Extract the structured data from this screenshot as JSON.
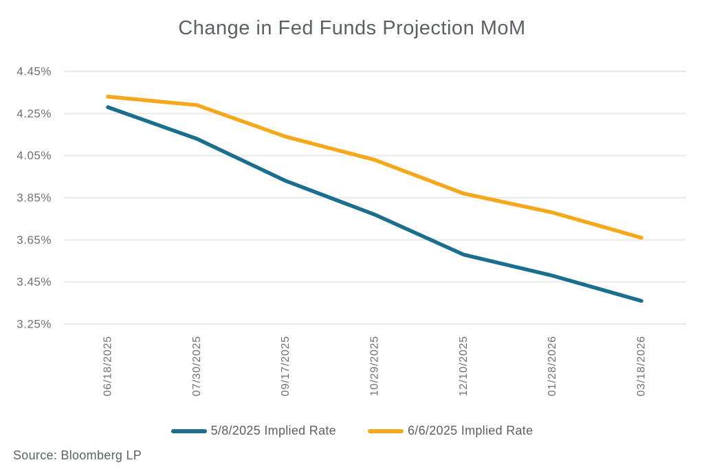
{
  "title": "Change in Fed Funds Projection MoM",
  "source": "Source: Bloomberg LP",
  "colors": {
    "series1": "#1a6e8e",
    "series2": "#f5a81c",
    "gridline": "#e9eaea",
    "title_text": "#5a6066",
    "axis_text": "#6e7176"
  },
  "chart_data": {
    "type": "line",
    "title": "Change in Fed Funds Projection MoM",
    "categories": [
      "06/18/2025",
      "07/30/2025",
      "09/17/2025",
      "10/29/2025",
      "12/10/2025",
      "01/28/2026",
      "03/18/2026"
    ],
    "series": [
      {
        "name": "5/8/2025 Implied Rate",
        "color": "#1a6e8e",
        "values": [
          4.28,
          4.13,
          3.93,
          3.77,
          3.58,
          3.48,
          3.36
        ]
      },
      {
        "name": "6/6/2025 Implied Rate",
        "color": "#f5a81c",
        "values": [
          4.33,
          4.29,
          4.14,
          4.03,
          3.87,
          3.78,
          3.66
        ]
      }
    ],
    "ylim": [
      3.25,
      4.45
    ],
    "ytick_values": [
      4.45,
      4.25,
      4.05,
      3.85,
      3.65,
      3.45,
      3.25
    ],
    "ytick_labels": [
      "4.45%",
      "4.25%",
      "4.05%",
      "3.85%",
      "3.65%",
      "3.45%",
      "3.25%"
    ],
    "xlabel": "",
    "ylabel": "",
    "grid": true,
    "x_tick_rotation": -90,
    "legend_position": "bottom"
  }
}
